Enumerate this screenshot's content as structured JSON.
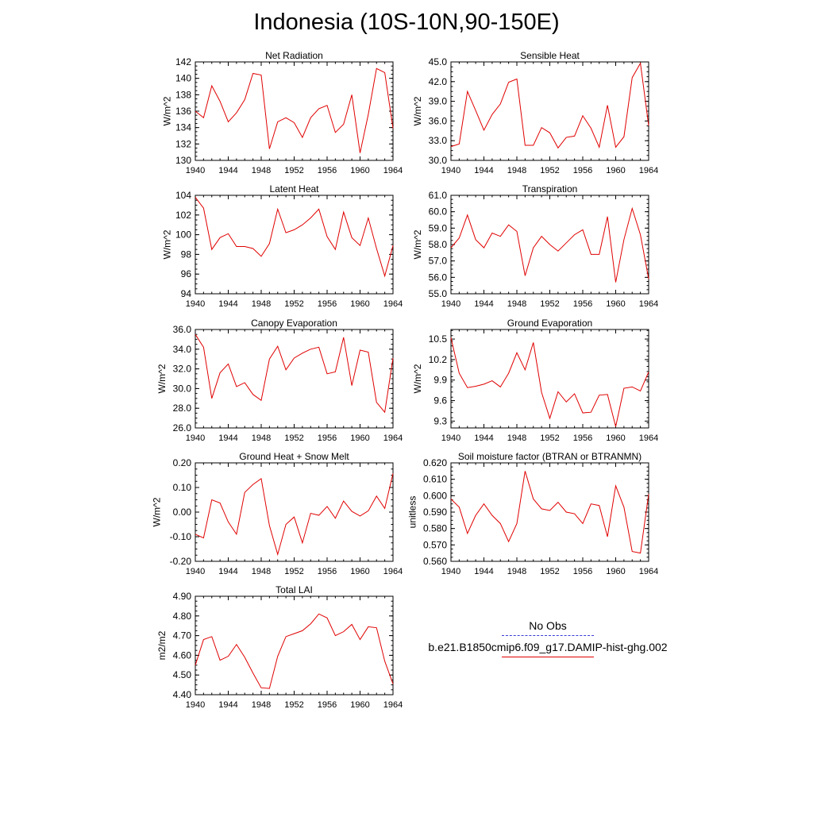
{
  "title": "Indonesia (10S-10N,90-150E)",
  "legend": [
    {
      "label": "No Obs",
      "color": "#3b3bd6",
      "style": "dashed"
    },
    {
      "label": "b.e21.B1850cmip6.f09_g17.DAMIP-hist-ghg.002",
      "color": "#e00000",
      "style": "solid"
    }
  ],
  "chart_data": [
    {
      "type": "line",
      "title": "Net Radiation",
      "ylabel": "W/m^2",
      "xlim": [
        1940,
        1964
      ],
      "ylim": [
        130,
        142
      ],
      "xticks": [
        "1940",
        "1944",
        "1948",
        "1952",
        "1956",
        "1960",
        "1964"
      ],
      "yticks": [
        "130",
        "132",
        "134",
        "136",
        "138",
        "140",
        "142"
      ],
      "x": [
        1940,
        1941,
        1942,
        1943,
        1944,
        1945,
        1946,
        1947,
        1948,
        1949,
        1950,
        1951,
        1952,
        1953,
        1954,
        1955,
        1956,
        1957,
        1958,
        1959,
        1960,
        1961,
        1962,
        1963,
        1964
      ],
      "series": [
        {
          "values": [
            136.0,
            135.2,
            139.1,
            137.2,
            134.7,
            135.8,
            137.4,
            140.6,
            140.4,
            131.4,
            134.7,
            135.2,
            134.6,
            132.8,
            135.2,
            136.3,
            136.7,
            133.4,
            134.4,
            138.0,
            130.9,
            135.6,
            141.2,
            140.7,
            133.9
          ]
        }
      ]
    },
    {
      "type": "line",
      "title": "Sensible Heat",
      "ylabel": "W/m^2",
      "xlim": [
        1940,
        1964
      ],
      "ylim": [
        30.0,
        45.0
      ],
      "xticks": [
        "1940",
        "1944",
        "1948",
        "1952",
        "1956",
        "1960",
        "1964"
      ],
      "yticks": [
        "30.0",
        "33.0",
        "36.0",
        "39.0",
        "42.0",
        "45.0"
      ],
      "x": [
        1940,
        1941,
        1942,
        1943,
        1944,
        1945,
        1946,
        1947,
        1948,
        1949,
        1950,
        1951,
        1952,
        1953,
        1954,
        1955,
        1956,
        1957,
        1958,
        1959,
        1960,
        1961,
        1962,
        1963,
        1964
      ],
      "series": [
        {
          "values": [
            32.1,
            32.5,
            40.5,
            37.6,
            34.6,
            37.0,
            38.6,
            41.9,
            42.4,
            32.3,
            32.3,
            35.0,
            34.2,
            31.9,
            33.5,
            33.7,
            36.8,
            34.9,
            32.0,
            38.4,
            32.0,
            33.6,
            42.6,
            44.8,
            35.3
          ]
        }
      ]
    },
    {
      "type": "line",
      "title": "Latent Heat",
      "ylabel": "W/m^2",
      "xlim": [
        1940,
        1964
      ],
      "ylim": [
        94,
        104
      ],
      "xticks": [
        "1940",
        "1944",
        "1948",
        "1952",
        "1956",
        "1960",
        "1964"
      ],
      "yticks": [
        "94",
        "96",
        "98",
        "100",
        "102",
        "104"
      ],
      "x": [
        1940,
        1941,
        1942,
        1943,
        1944,
        1945,
        1946,
        1947,
        1948,
        1949,
        1950,
        1951,
        1952,
        1953,
        1954,
        1955,
        1956,
        1957,
        1958,
        1959,
        1960,
        1961,
        1962,
        1963,
        1964
      ],
      "series": [
        {
          "values": [
            103.8,
            102.7,
            98.5,
            99.7,
            100.1,
            98.8,
            98.8,
            98.6,
            97.8,
            99.1,
            102.6,
            100.2,
            100.5,
            101.0,
            101.7,
            102.6,
            99.8,
            98.5,
            102.3,
            99.7,
            98.9,
            101.7,
            98.6,
            95.8,
            98.9
          ]
        }
      ]
    },
    {
      "type": "line",
      "title": "Transpiration",
      "ylabel": "W/m^2",
      "xlim": [
        1940,
        1964
      ],
      "ylim": [
        55.0,
        61.0
      ],
      "xticks": [
        "1940",
        "1944",
        "1948",
        "1952",
        "1956",
        "1960",
        "1964"
      ],
      "yticks": [
        "55.0",
        "56.0",
        "57.0",
        "58.0",
        "59.0",
        "60.0",
        "61.0"
      ],
      "x": [
        1940,
        1941,
        1942,
        1943,
        1944,
        1945,
        1946,
        1947,
        1948,
        1949,
        1950,
        1951,
        1952,
        1953,
        1954,
        1955,
        1956,
        1957,
        1958,
        1959,
        1960,
        1961,
        1962,
        1963,
        1964
      ],
      "series": [
        {
          "values": [
            57.8,
            58.4,
            59.8,
            58.3,
            57.8,
            58.7,
            58.5,
            59.2,
            58.8,
            56.1,
            57.8,
            58.5,
            58.0,
            57.6,
            58.1,
            58.6,
            58.9,
            57.4,
            57.4,
            59.7,
            55.7,
            58.3,
            60.2,
            58.6,
            55.9
          ]
        }
      ]
    },
    {
      "type": "line",
      "title": "Canopy Evaporation",
      "ylabel": "W/m^2",
      "xlim": [
        1940,
        1964
      ],
      "ylim": [
        26.0,
        36.0
      ],
      "xticks": [
        "1940",
        "1944",
        "1948",
        "1952",
        "1956",
        "1960",
        "1964"
      ],
      "yticks": [
        "26.0",
        "28.0",
        "30.0",
        "32.0",
        "34.0",
        "36.0"
      ],
      "x": [
        1940,
        1941,
        1942,
        1943,
        1944,
        1945,
        1946,
        1947,
        1948,
        1949,
        1950,
        1951,
        1952,
        1953,
        1954,
        1955,
        1956,
        1957,
        1958,
        1959,
        1960,
        1961,
        1962,
        1963,
        1964
      ],
      "series": [
        {
          "values": [
            35.5,
            34.2,
            29.0,
            31.6,
            32.5,
            30.2,
            30.6,
            29.4,
            28.8,
            33.0,
            34.3,
            31.9,
            33.1,
            33.6,
            34.0,
            34.2,
            31.5,
            31.7,
            35.2,
            30.3,
            33.9,
            33.7,
            28.6,
            27.6,
            33.1
          ]
        }
      ]
    },
    {
      "type": "line",
      "title": "Ground Evaporation",
      "ylabel": "W/m^2",
      "xlim": [
        1940,
        1964
      ],
      "ylim": [
        9.2,
        10.64
      ],
      "xticks": [
        "1940",
        "1944",
        "1948",
        "1952",
        "1956",
        "1960",
        "1964"
      ],
      "yticks": [
        "9.3",
        "9.6",
        "9.9",
        "10.2",
        "10.5"
      ],
      "x": [
        1940,
        1941,
        1942,
        1943,
        1944,
        1945,
        1946,
        1947,
        1948,
        1949,
        1950,
        1951,
        1952,
        1953,
        1954,
        1955,
        1956,
        1957,
        1958,
        1959,
        1960,
        1961,
        1962,
        1963,
        1964
      ],
      "series": [
        {
          "values": [
            10.52,
            10.0,
            9.79,
            9.81,
            9.84,
            9.89,
            9.8,
            10.0,
            10.3,
            10.05,
            10.45,
            9.72,
            9.34,
            9.73,
            9.58,
            9.7,
            9.42,
            9.43,
            9.68,
            9.69,
            9.22,
            9.78,
            9.8,
            9.74,
            10.02
          ]
        }
      ]
    },
    {
      "type": "line",
      "title": "Ground Heat + Snow Melt",
      "ylabel": "W/m^2",
      "xlim": [
        1940,
        1964
      ],
      "ylim": [
        -0.2,
        0.2
      ],
      "xticks": [
        "1940",
        "1944",
        "1948",
        "1952",
        "1956",
        "1960",
        "1964"
      ],
      "yticks": [
        "-0.20",
        "-0.10",
        "0.00",
        "0.10",
        "0.20"
      ],
      "x": [
        1940,
        1941,
        1942,
        1943,
        1944,
        1945,
        1946,
        1947,
        1948,
        1949,
        1950,
        1951,
        1952,
        1953,
        1954,
        1955,
        1956,
        1957,
        1958,
        1959,
        1960,
        1961,
        1962,
        1963,
        1964
      ],
      "series": [
        {
          "values": [
            -0.09,
            -0.105,
            0.05,
            0.037,
            -0.04,
            -0.09,
            0.08,
            0.112,
            0.136,
            -0.055,
            -0.172,
            -0.05,
            -0.02,
            -0.125,
            -0.005,
            -0.013,
            0.023,
            -0.025,
            0.045,
            0.003,
            -0.016,
            0.005,
            0.065,
            0.015,
            0.157
          ]
        }
      ]
    },
    {
      "type": "line",
      "title": "Soil moisture factor (BTRAN or BTRANMN)",
      "ylabel": "unitless",
      "xlim": [
        1940,
        1964
      ],
      "ylim": [
        0.56,
        0.62
      ],
      "xticks": [
        "1940",
        "1944",
        "1948",
        "1952",
        "1956",
        "1960",
        "1964"
      ],
      "yticks": [
        "0.560",
        "0.570",
        "0.580",
        "0.590",
        "0.600",
        "0.610",
        "0.620"
      ],
      "x": [
        1940,
        1941,
        1942,
        1943,
        1944,
        1945,
        1946,
        1947,
        1948,
        1949,
        1950,
        1951,
        1952,
        1953,
        1954,
        1955,
        1956,
        1957,
        1958,
        1959,
        1960,
        1961,
        1962,
        1963,
        1964
      ],
      "series": [
        {
          "values": [
            0.598,
            0.593,
            0.577,
            0.588,
            0.595,
            0.588,
            0.583,
            0.572,
            0.583,
            0.615,
            0.598,
            0.592,
            0.591,
            0.596,
            0.59,
            0.589,
            0.583,
            0.595,
            0.594,
            0.575,
            0.606,
            0.593,
            0.566,
            0.565,
            0.601
          ]
        }
      ]
    },
    {
      "type": "line",
      "title": "Total LAI",
      "ylabel": "m2/m2",
      "xlim": [
        1940,
        1964
      ],
      "ylim": [
        4.4,
        4.9
      ],
      "xticks": [
        "1940",
        "1944",
        "1948",
        "1952",
        "1956",
        "1960",
        "1964"
      ],
      "yticks": [
        "4.40",
        "4.50",
        "4.60",
        "4.70",
        "4.80",
        "4.90"
      ],
      "x": [
        1940,
        1941,
        1942,
        1943,
        1944,
        1945,
        1946,
        1947,
        1948,
        1949,
        1950,
        1951,
        1952,
        1953,
        1954,
        1955,
        1956,
        1957,
        1958,
        1959,
        1960,
        1961,
        1962,
        1963,
        1964
      ],
      "series": [
        {
          "values": [
            4.55,
            4.68,
            4.695,
            4.575,
            4.595,
            4.655,
            4.59,
            4.51,
            4.435,
            4.432,
            4.595,
            4.695,
            4.71,
            4.725,
            4.76,
            4.81,
            4.79,
            4.7,
            4.72,
            4.757,
            4.68,
            4.745,
            4.74,
            4.57,
            4.455
          ]
        }
      ]
    }
  ]
}
